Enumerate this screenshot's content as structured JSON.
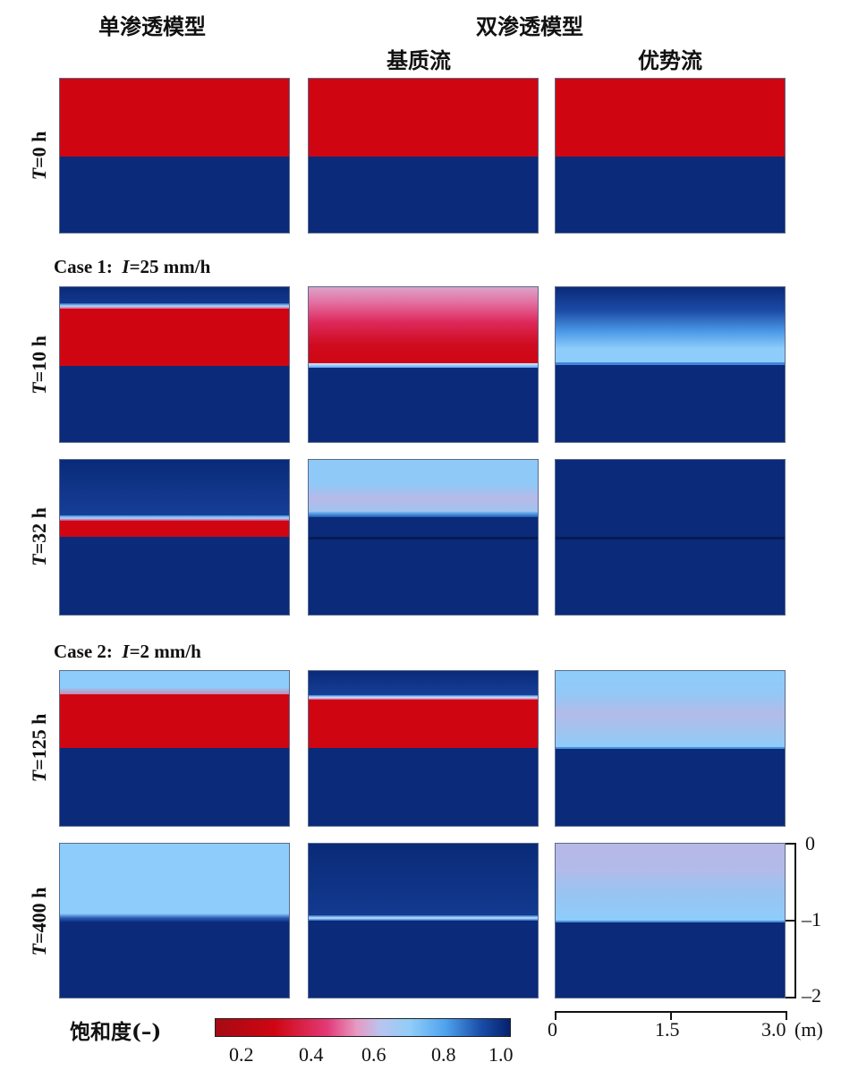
{
  "headers": {
    "single": "单渗透模型",
    "dual": "双渗透模型",
    "matrix": "基质流",
    "preferential": "优势流"
  },
  "cases": {
    "case1": {
      "prefix": "Case 1:",
      "var": "I",
      "value": "=25 mm/h"
    },
    "case2": {
      "prefix": "Case 2:",
      "var": "I",
      "value": "=2 mm/h"
    }
  },
  "rows": [
    {
      "var": "T",
      "label": "=0 h"
    },
    {
      "var": "T",
      "label": "=10 h"
    },
    {
      "var": "T",
      "label": "=32 h"
    },
    {
      "var": "T",
      "label": "=125 h"
    },
    {
      "var": "T",
      "label": "=400 h"
    }
  ],
  "colorbar": {
    "title": "饱和度(–)",
    "ticks": [
      "0.2",
      "0.4",
      "0.6",
      "0.8",
      "1.0"
    ]
  },
  "depth_axis": {
    "ticks": [
      "0",
      "–1",
      "–2"
    ]
  },
  "width_axis": {
    "ticks": [
      "0",
      "1.5",
      "3.0"
    ],
    "unit": "(m)"
  },
  "colors": {
    "dry_red": "#cf0612",
    "saturated_navy": "#0b2a7a",
    "light_blue": "#90cdf8",
    "lavender": "#b7b8e6"
  }
}
